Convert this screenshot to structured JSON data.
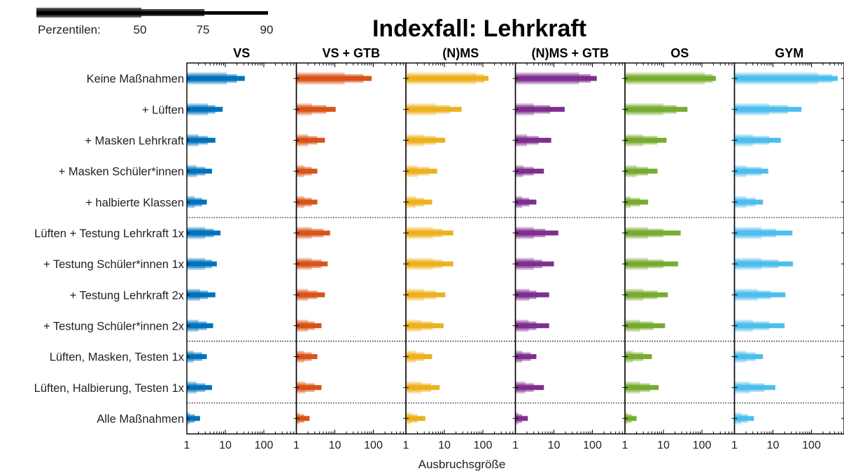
{
  "chart_data": {
    "type": "bar",
    "title": "Indexfall: Lehrkraft",
    "xlabel": "Ausbruchsgröße",
    "x_scale": "log",
    "xlim": [
      1,
      700
    ],
    "x_ticks": [
      1,
      10,
      100
    ],
    "x_tick_labels": [
      "1",
      "10",
      "100"
    ],
    "legend": {
      "label": "Perzentilen:",
      "percentiles": [
        "50",
        "75",
        "90"
      ]
    },
    "row_groups": [
      5,
      4,
      2,
      1
    ],
    "categories": [
      "Keine Maßnahmen",
      "+ Lüften",
      "+ Masken Lehrkraft",
      "+ Masken Schüler*innen",
      "+ halbierte Klassen",
      "Lüften + Testung Lehrkraft 1x",
      "+ Testung Schüler*innen 1x",
      "+ Testung Lehrkraft 2x",
      "+ Testung Schüler*innen 2x",
      "Lüften, Masken, Testen 1x",
      "Lüften, Halbierung, Testen 1x",
      "Alle Maßnahmen"
    ],
    "series": [
      {
        "name": "VS",
        "color": "#0072bd",
        "p50": [
          11,
          3.5,
          2,
          1.8,
          1.6,
          3,
          3,
          2.2,
          2,
          1.5,
          1.8,
          1.2
        ],
        "p75": [
          20,
          5.5,
          3.5,
          3,
          2.5,
          5,
          4.5,
          3.5,
          3.3,
          2.5,
          3,
          1.6
        ],
        "p90": [
          32,
          8.5,
          5.5,
          4.5,
          3.3,
          7.5,
          6,
          5.5,
          4.8,
          3.3,
          4.5,
          2.2
        ]
      },
      {
        "name": "VS + GTB",
        "color": "#d95319",
        "p50": [
          18,
          2.5,
          2,
          1.6,
          1.6,
          2.5,
          2.5,
          2,
          2,
          1.6,
          1.7,
          1.2
        ],
        "p75": [
          55,
          6,
          3.5,
          2.5,
          2.5,
          5,
          4.5,
          3.5,
          3,
          2.5,
          3,
          1.6
        ],
        "p90": [
          90,
          10.5,
          5.5,
          3.5,
          3.5,
          7.5,
          6.5,
          5.5,
          4.5,
          3.5,
          4.5,
          2.2
        ]
      },
      {
        "name": "(N)MS",
        "color": "#edb120",
        "p50": [
          65,
          6,
          3,
          2,
          1.8,
          5,
          5,
          3,
          2.5,
          1.8,
          2.5,
          1.4
        ],
        "p75": [
          110,
          14,
          6,
          4,
          3,
          9,
          9,
          6,
          5,
          3,
          4.5,
          2
        ],
        "p90": [
          140,
          28,
          10.5,
          6.5,
          4.8,
          17,
          17,
          10.5,
          9.5,
          4.8,
          7.5,
          3.2
        ]
      },
      {
        "name": "(N)MS + GTB",
        "color": "#7e2f8e",
        "p50": [
          45,
          3,
          2,
          1.6,
          1.5,
          3,
          3,
          2.3,
          2.2,
          1.5,
          1.8,
          1.2
        ],
        "p75": [
          90,
          8,
          4,
          3,
          2.3,
          6,
          5,
          3.5,
          3.5,
          2.5,
          3,
          1.5
        ],
        "p90": [
          130,
          19,
          8.5,
          5.5,
          3.5,
          13,
          10,
          7.5,
          7.5,
          3.5,
          5.5,
          2.1
        ]
      },
      {
        "name": "OS",
        "color": "#77ac30",
        "p50": [
          120,
          10,
          3,
          2,
          1.4,
          4,
          4,
          3,
          2.5,
          1.6,
          2.5,
          1.2
        ],
        "p75": [
          190,
          22,
          7,
          4,
          2.5,
          10,
          10,
          7,
          5.5,
          3,
          4.5,
          1.5
        ],
        "p90": [
          230,
          42,
          12,
          7,
          4,
          28,
          24,
          13,
          11,
          5,
          7.5,
          2
        ]
      },
      {
        "name": "GYM",
        "color": "#4dbeee",
        "p50": [
          150,
          8,
          3,
          2,
          2,
          5,
          5,
          4,
          3,
          2,
          2.5,
          1.5
        ],
        "p75": [
          350,
          25,
          8,
          5,
          3.5,
          12,
          14,
          9,
          8,
          3.5,
          6,
          2.2
        ],
        "p90": [
          480,
          55,
          16,
          7.5,
          5.5,
          32,
          33,
          21,
          20,
          5.5,
          11.5,
          3.2
        ]
      }
    ]
  }
}
